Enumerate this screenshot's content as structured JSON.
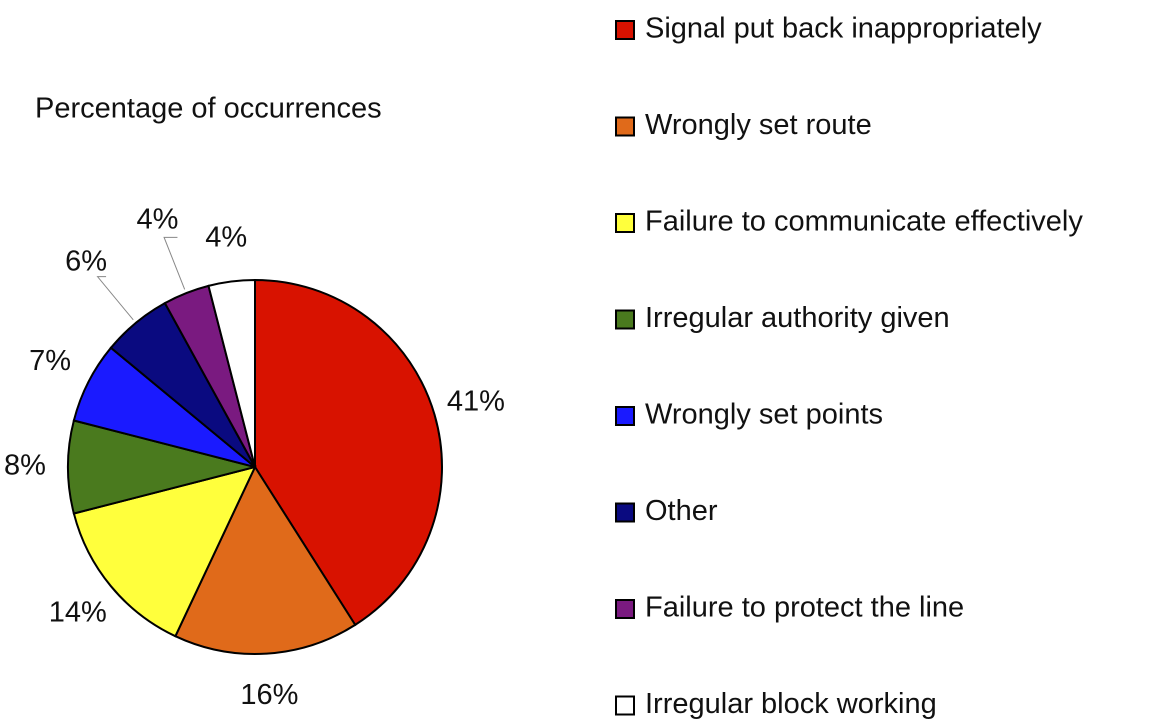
{
  "chart_data": {
    "type": "pie",
    "title": "Percentage of occurrences",
    "categories": [
      "Signal put back inappropriately",
      "Wrongly set route",
      "Failure to communicate effectively",
      "Irregular authority given",
      "Wrongly set points",
      "Other",
      "Failure to protect the line",
      "Irregular block working"
    ],
    "values": [
      41,
      16,
      14,
      8,
      7,
      6,
      4,
      4
    ],
    "value_labels": [
      "41%",
      "16%",
      "14%",
      "8%",
      "7%",
      "6%",
      "4%",
      "4%"
    ],
    "colors": [
      "#d81200",
      "#e06a1a",
      "#ffff3c",
      "#4a7a1e",
      "#1a1aff",
      "#0a0a80",
      "#7a1a80",
      "#ffffff"
    ]
  }
}
